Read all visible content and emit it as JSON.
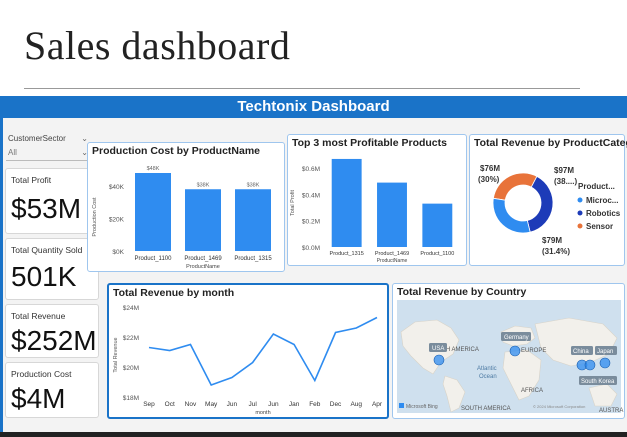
{
  "page": {
    "title": "Sales dashboard"
  },
  "dashboard": {
    "header_title": "Techtonix Dashboard",
    "slicer": {
      "label": "CustomerSector",
      "value": "All"
    },
    "kpis": [
      {
        "label": "Total Profit",
        "value": "$53M"
      },
      {
        "label": "Total Quantity Sold",
        "value": "501K"
      },
      {
        "label": "Total Revenue",
        "value": "$252M"
      },
      {
        "label": "Production Cost",
        "value": "$4M"
      }
    ],
    "colors": {
      "accent": "#1a73c8",
      "bar": "#2f8cf0",
      "robotics": "#1d3bb8",
      "sensor": "#e8733a",
      "microc": "#2f8cf0"
    }
  },
  "chart_data": [
    {
      "type": "bar",
      "title": "Production Cost by ProductName",
      "xlabel": "ProductName",
      "ylabel": "Production Cost",
      "categories": [
        "Product_1100",
        "Product_1469",
        "Product_1315"
      ],
      "values": [
        48000,
        38000,
        38000
      ],
      "data_labels": [
        "$48K",
        "$38K",
        "$38K"
      ],
      "ylim": [
        0,
        48000
      ],
      "yticks": [
        0,
        20000,
        40000
      ],
      "ytick_labels": [
        "$0K",
        "$20K",
        "$40K"
      ]
    },
    {
      "type": "bar",
      "title": "Top 3 most Profitable Products",
      "xlabel": "ProductName",
      "ylabel": "Total Profit",
      "categories": [
        "Product_1315",
        "Product_1469",
        "Product_1100"
      ],
      "values": [
        0.67,
        0.49,
        0.33
      ],
      "ylim": [
        0,
        0.7
      ],
      "yticks": [
        0,
        0.2,
        0.4,
        0.6
      ],
      "ytick_labels": [
        "$0.0M",
        "$0.2M",
        "$0.4M",
        "$0.6M"
      ]
    },
    {
      "type": "pie",
      "title": "Total Revenue by ProductCategory",
      "legend_title": "Product...",
      "slices": [
        {
          "name": "Microc...",
          "value": 79,
          "label": "$79M (31.4%)",
          "color": "#2f8cf0"
        },
        {
          "name": "Robotics",
          "value": 97,
          "label": "$97M (38....)",
          "color": "#1d3bb8"
        },
        {
          "name": "Sensor",
          "value": 76,
          "label": "$76M (30%)",
          "color": "#e8733a"
        }
      ],
      "legend": [
        "Microc...",
        "Robotics",
        "Sensor"
      ],
      "label_texts": {
        "sensor_top": "$76M",
        "sensor_bottom": "(30%)",
        "robotics_top": "$97M",
        "robotics_bottom": "(38....)",
        "microc_top": "$79M",
        "microc_bottom": "(31.4%)"
      }
    },
    {
      "type": "line",
      "title": "Total Revenue by month",
      "xlabel": "month",
      "ylabel": "Total Revenue",
      "x": [
        "Sep",
        "Oct",
        "Nov",
        "May",
        "Jun",
        "Jul",
        "Jun",
        "Jan",
        "Feb",
        "Dec",
        "Aug",
        "Apr"
      ],
      "values": [
        21.3,
        21.1,
        21.5,
        18.8,
        19.3,
        20.3,
        22.2,
        21.5,
        19.1,
        22.3,
        22.6,
        23.3
      ],
      "ylim": [
        18,
        24
      ],
      "yticks": [
        18,
        20,
        22,
        24
      ],
      "ytick_labels": [
        "$18M",
        "$20M",
        "$22M",
        "$24M"
      ]
    }
  ],
  "map": {
    "title": "Total Revenue by Country",
    "labels": {
      "na": "NORTH AMERICA",
      "eu": "EUROPE",
      "af": "AFRICA",
      "sa": "SOUTH AMERICA",
      "au": "AUSTRA",
      "atl1": "Atlantic",
      "atl2": "Ocean"
    },
    "country_labels": [
      "Germany",
      "USA",
      "China",
      "Japan",
      "South Korea"
    ],
    "attribution": "Microsoft Bing",
    "copyright": "© 2024 Microsoft Corporation"
  }
}
